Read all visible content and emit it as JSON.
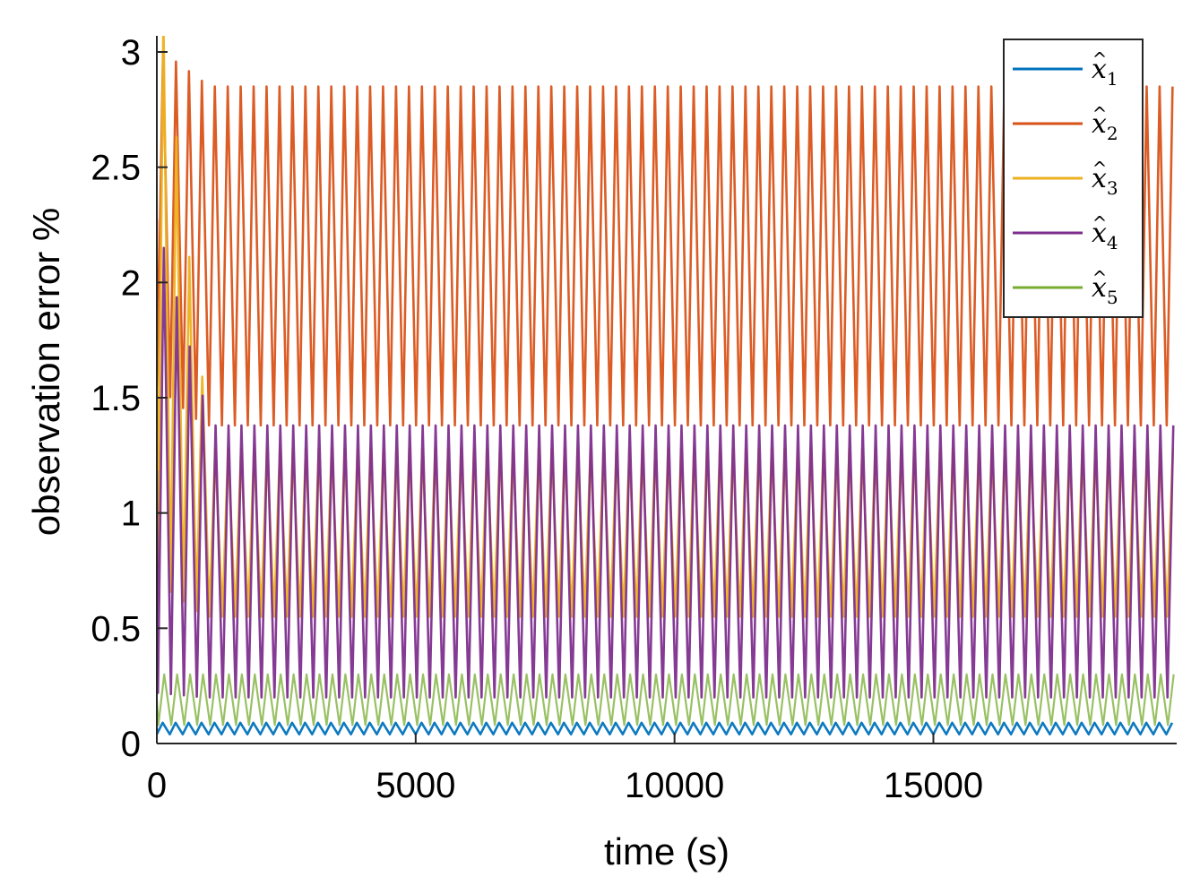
{
  "chart_data": {
    "type": "line",
    "xlabel": "time (s)",
    "ylabel": "observation error %",
    "xlim": [
      0,
      19700
    ],
    "ylim": [
      0,
      3
    ],
    "xticks": [
      0,
      5000,
      10000,
      15000
    ],
    "xtick_labels": [
      "0",
      "5000",
      "10000",
      "15000"
    ],
    "yticks": [
      0,
      0.5,
      1,
      1.5,
      2,
      2.5,
      3
    ],
    "ytick_labels": [
      "0",
      "0.5",
      "1",
      "1.5",
      "2",
      "2.5",
      "3"
    ],
    "legend_position": "top-right",
    "grid": false,
    "oscillation_period": 250,
    "series": [
      {
        "name": "x̂1",
        "base": "x",
        "sub": "1",
        "color": "#0072BD",
        "low": 0.04,
        "high": 0.09,
        "start_high": 0.09,
        "start_low": 0.04
      },
      {
        "name": "x̂2",
        "base": "x",
        "sub": "2",
        "color": "#D95319",
        "low": 1.38,
        "high": 2.85,
        "start_high": 3.0,
        "start_low": 1.55
      },
      {
        "name": "x̂3",
        "base": "x",
        "sub": "3",
        "color": "#EDB120",
        "low": 0.55,
        "high": 1.28,
        "start_high": 3.15,
        "start_low": 0.7
      },
      {
        "name": "x̂4",
        "base": "x",
        "sub": "4",
        "color": "#7E2F8E",
        "low": 0.2,
        "high": 1.38,
        "start_high": 2.15,
        "start_low": 0.22
      },
      {
        "name": "x̂5",
        "base": "x",
        "sub": "5",
        "color": "#77AC30",
        "low": 0.08,
        "high": 0.3,
        "start_high": 0.3,
        "start_low": 0.08
      }
    ]
  }
}
